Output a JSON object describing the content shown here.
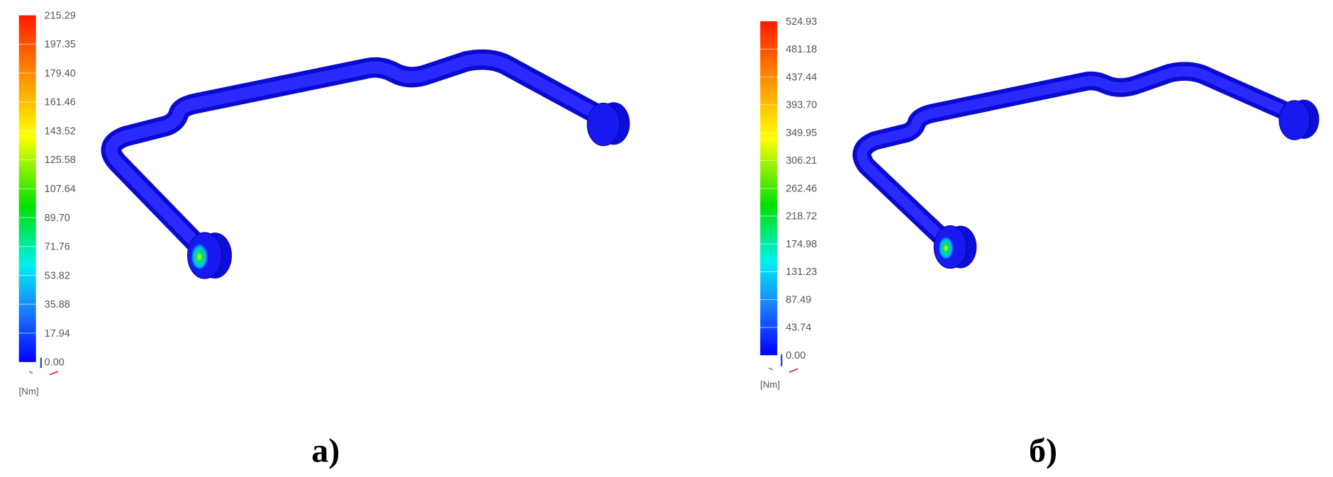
{
  "panels": [
    {
      "caption": "а)",
      "legend": {
        "unit": "[Nm]",
        "ticks": [
          "215.29",
          "197.35",
          "179.40",
          "161.46",
          "143.52",
          "125.58",
          "107.64",
          "89.70",
          "71.76",
          "53.82",
          "35.88",
          "17.94",
          "0.00"
        ]
      }
    },
    {
      "caption": "б)",
      "legend": {
        "unit": "[Nm]",
        "ticks": [
          "524.93",
          "481.18",
          "437.44",
          "393.70",
          "349.95",
          "306.21",
          "262.46",
          "218.72",
          "174.98",
          "131.23",
          "87.49",
          "43.74",
          "0.00"
        ]
      }
    }
  ],
  "colors": {
    "scale": [
      "#ff1a00",
      "#ff8c00",
      "#ffff00",
      "#00e600",
      "#00ffff",
      "#0000ff"
    ],
    "part": "#1515f0"
  }
}
